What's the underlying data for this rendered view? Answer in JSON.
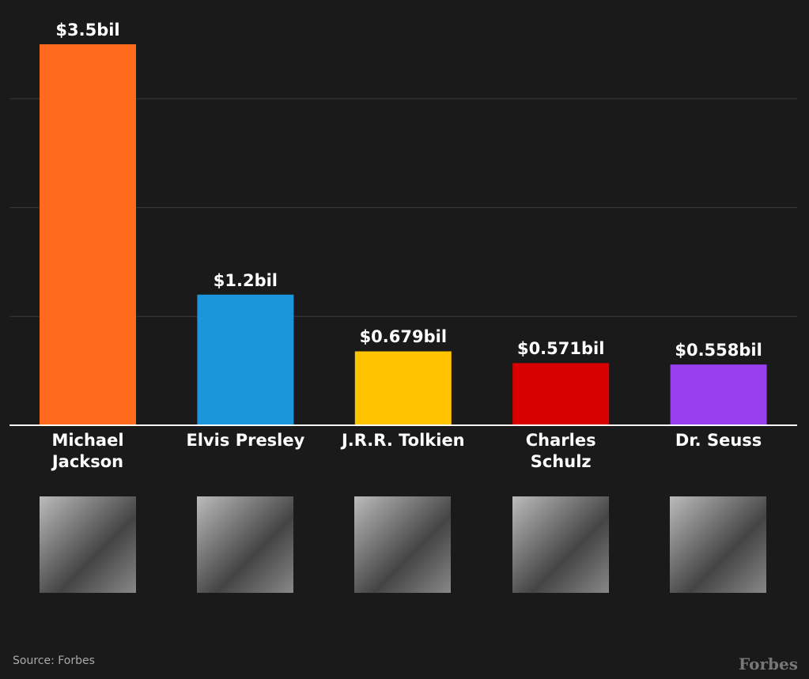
{
  "chart_data": {
    "type": "bar",
    "categories": [
      "Michael Jackson",
      "Elvis Presley",
      "J.R.R. Tolkien",
      "Charles Schulz",
      "Dr. Seuss"
    ],
    "values": [
      3.5,
      1.2,
      0.679,
      0.571,
      0.558
    ],
    "value_labels": [
      "$3.5bil",
      "$1.2bil",
      "$0.679bil",
      "$0.571bil",
      "$0.558bil"
    ],
    "colors": [
      "#ff6a1c",
      "#1b95dc",
      "#ffc300",
      "#d80000",
      "#9a3ff0"
    ],
    "ylim": [
      0,
      3.5
    ],
    "yticks": [
      1,
      2,
      3
    ],
    "grid": true
  },
  "footer": {
    "source": "Source: Forbes",
    "logo": "Forbes"
  }
}
